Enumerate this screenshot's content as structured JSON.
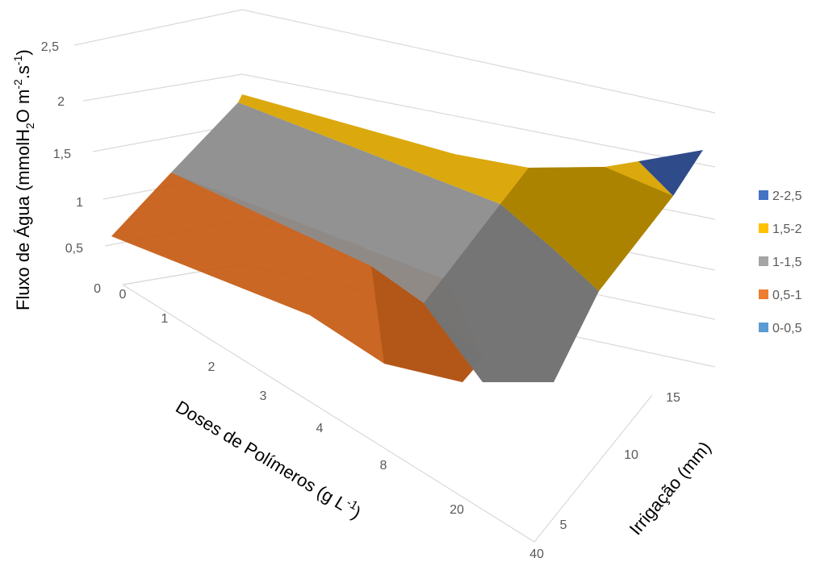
{
  "chart_data": {
    "type": "surface",
    "title": "",
    "zlabel": {
      "prefix": "Fluxo de Água (mmolH",
      "sub": "2",
      "middle": "O m",
      "sup1": "-2",
      "dot": ".s",
      "sup2": "-1",
      "suffix": ")"
    },
    "xlabel": {
      "prefix": "Doses de Polímeros (g L",
      "sup": "-1",
      "suffix": ")"
    },
    "ylabel": "Irrigação (mm)",
    "doses": [
      "0",
      "1",
      "2",
      "3",
      "4",
      "8",
      "20",
      "40"
    ],
    "irrigation": [
      "5",
      "10",
      "15"
    ],
    "zticks": [
      "0",
      "0,5",
      "1",
      "1,5",
      "2",
      "2,5"
    ],
    "zlim": [
      0,
      2.5
    ],
    "values": {
      "irrigation_5": [
        0.5,
        0.45,
        0.4,
        0.35,
        0.3,
        0.25,
        0.25,
        0.5
      ],
      "irrigation_10": [
        0.8,
        0.75,
        0.7,
        0.65,
        0.6,
        0.6,
        0.5,
        1.0
      ],
      "irrigation_15": [
        1.2,
        1.15,
        1.1,
        1.05,
        1.0,
        1.15,
        1.3,
        2.3
      ]
    },
    "legend": {
      "position": "right",
      "entries": [
        {
          "label": "2-2,5",
          "color": "#4472C4"
        },
        {
          "label": "1,5-2",
          "color": "#FFC000"
        },
        {
          "label": "1-1,5",
          "color": "#A5A5A5"
        },
        {
          "label": "0,5-1",
          "color": "#ED7D31"
        },
        {
          "label": "0-0,5",
          "color": "#5B9BD5"
        }
      ]
    }
  }
}
